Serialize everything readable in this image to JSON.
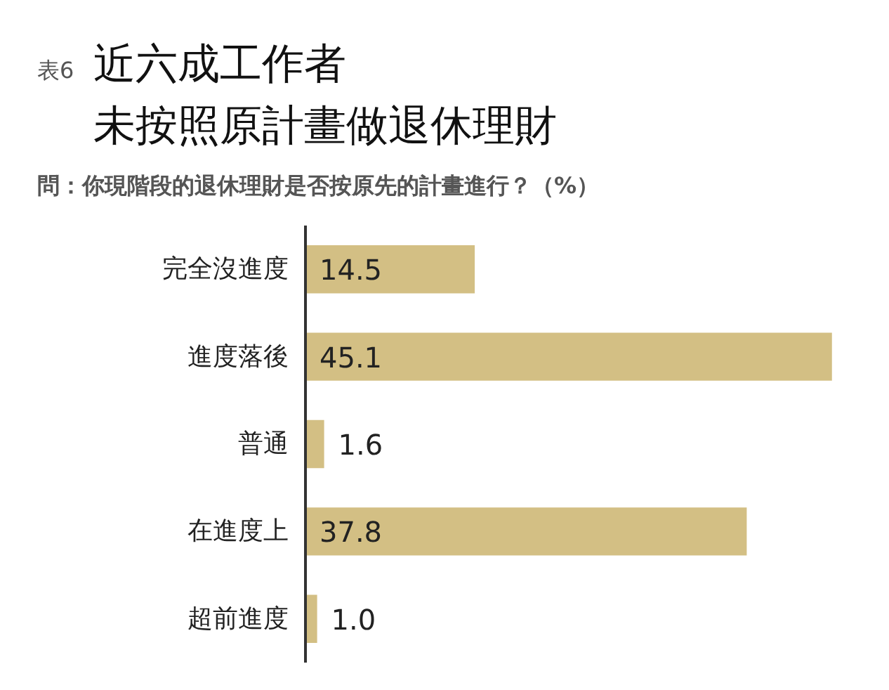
{
  "chart_data": {
    "type": "bar",
    "orientation": "horizontal",
    "title": "近六成工作者未按照原計畫做退休理財",
    "subtitle": "問：你現階段的退休理財是否按原先的計畫進行？（%）",
    "annotations": [
      "表6"
    ],
    "categories": [
      "完全沒進度",
      "進度落後",
      "普通",
      "在進度上",
      "超前進度"
    ],
    "values": [
      14.5,
      45.1,
      1.6,
      37.8,
      1.0
    ],
    "value_labels": [
      "14.5",
      "45.1",
      "1.6",
      "37.8",
      "1.0"
    ],
    "color": "#d3bf84"
  }
}
